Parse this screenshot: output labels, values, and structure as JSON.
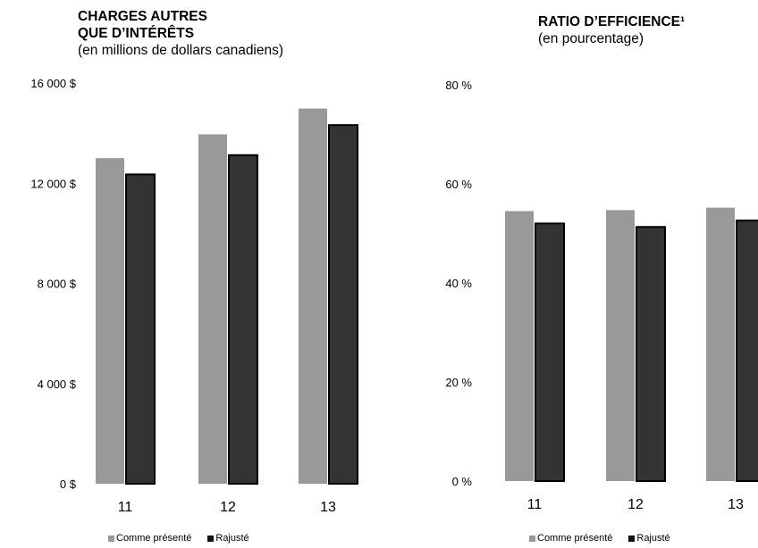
{
  "chart_data": [
    {
      "type": "bar",
      "title_lines": [
        "CHARGES AUTRES",
        "QUE D’INTÉRÊTS"
      ],
      "subtitle": "(en millions de dollars canadiens)",
      "categories": [
        "11",
        "12",
        "13"
      ],
      "series": [
        {
          "name": "Comme présenté",
          "values": [
            13000,
            13950,
            14980
          ],
          "color": "#999999"
        },
        {
          "name": "Rajusté",
          "values": [
            12350,
            13120,
            14320
          ],
          "color": "#333333"
        }
      ],
      "ylim": [
        0,
        16000
      ],
      "yticks": [
        0,
        4000,
        8000,
        12000,
        16000
      ],
      "ytick_labels": [
        "0 $",
        "4 000 $",
        "8 000 $",
        "12 000 $",
        "16 000 $"
      ],
      "grid": false,
      "legend_position": "bottom"
    },
    {
      "type": "bar",
      "title_lines": [
        "RATIO D’EFFICIENCE¹"
      ],
      "subtitle": "(en pourcentage)",
      "categories": [
        "11",
        "12",
        "13"
      ],
      "series": [
        {
          "name": "Comme présenté",
          "values": [
            54.5,
            54.7,
            55.2
          ],
          "color": "#999999"
        },
        {
          "name": "Rajusté",
          "values": [
            52.0,
            51.3,
            52.6
          ],
          "color": "#333333"
        }
      ],
      "ylim": [
        0,
        80
      ],
      "yticks": [
        0,
        20,
        40,
        60,
        80
      ],
      "ytick_labels": [
        "0 %",
        "20 %",
        "40 %",
        "60 %",
        "80 %"
      ],
      "grid": false,
      "legend_position": "bottom"
    }
  ]
}
